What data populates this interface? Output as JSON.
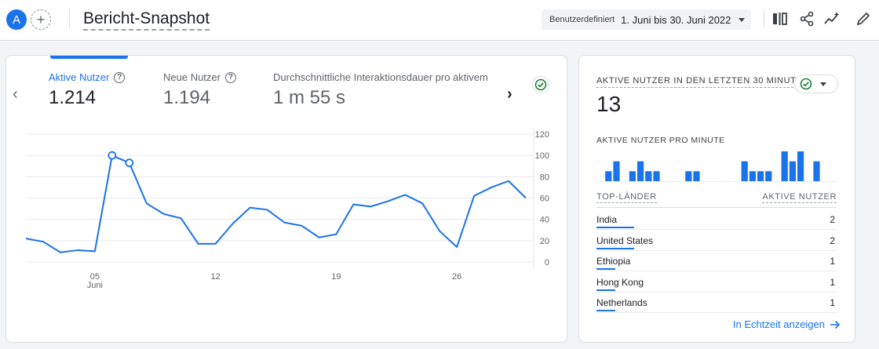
{
  "header": {
    "avatar_letter": "A",
    "add_symbol": "+",
    "title": "Bericht-Snapshot",
    "date_label": "Benutzerdefiniert",
    "date_value": "1. Juni bis 30. Juni 2022",
    "icons": [
      "compare-icon",
      "share-icon",
      "insights-icon",
      "edit-icon"
    ]
  },
  "metrics": [
    {
      "label": "Aktive Nutzer",
      "value": "1.214",
      "active": true
    },
    {
      "label": "Neue Nutzer",
      "value": "1.194",
      "active": false
    },
    {
      "label": "Durchschnittliche Interaktionsdauer pro aktivem",
      "value": "1 m 55 s",
      "active": false
    }
  ],
  "chart_data": {
    "type": "line",
    "x": [
      1,
      2,
      3,
      4,
      5,
      6,
      7,
      8,
      9,
      10,
      11,
      12,
      13,
      14,
      15,
      16,
      17,
      18,
      19,
      20,
      21,
      22,
      23,
      24,
      25,
      26,
      27,
      28,
      29,
      30
    ],
    "x_ticks": [
      {
        "day": 5,
        "label": "05",
        "sublabel": "Juni"
      },
      {
        "day": 12,
        "label": "12"
      },
      {
        "day": 19,
        "label": "19"
      },
      {
        "day": 26,
        "label": "26"
      }
    ],
    "series": [
      {
        "values": [
          22,
          19,
          9,
          11,
          10,
          100,
          93,
          55,
          45,
          41,
          17,
          17,
          36,
          51,
          49,
          37,
          34,
          23,
          26,
          54,
          52,
          57,
          63,
          55,
          29,
          14,
          62,
          70,
          76,
          60
        ],
        "markers": [
          6,
          7
        ]
      }
    ],
    "y_ticks": [
      0,
      20,
      40,
      60,
      80,
      100,
      120
    ],
    "ylim": [
      0,
      120
    ],
    "color": "#1a73e8"
  },
  "realtime": {
    "title": "AKTIVE NUTZER IN DEN LETZTEN 30 MINUTEN",
    "count": "13",
    "per_minute_label": "AKTIVE NUTZER PRO MINUTE",
    "per_minute": [
      0,
      1,
      2,
      0,
      1,
      2,
      1,
      1,
      0,
      0,
      0,
      1,
      1,
      0,
      0,
      0,
      0,
      0,
      2,
      1,
      1,
      1,
      0,
      3,
      2,
      3,
      0,
      2,
      0,
      0
    ],
    "col_left": "TOP-LÄNDER",
    "col_right": "AKTIVE NUTZER",
    "countries": [
      {
        "name": "India",
        "value": "2",
        "share": 1.0
      },
      {
        "name": "United States",
        "value": "2",
        "share": 1.0
      },
      {
        "name": "Ethiopia",
        "value": "1",
        "share": 0.5
      },
      {
        "name": "Hong Kong",
        "value": "1",
        "share": 0.5
      },
      {
        "name": "Netherlands",
        "value": "1",
        "share": 0.5
      }
    ],
    "link_label": "In Echtzeit anzeigen"
  }
}
